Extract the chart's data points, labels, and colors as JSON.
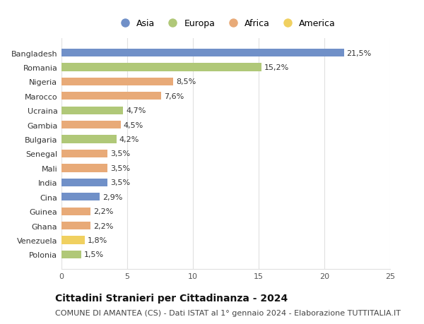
{
  "countries": [
    "Bangladesh",
    "Romania",
    "Nigeria",
    "Marocco",
    "Ucraina",
    "Gambia",
    "Bulgaria",
    "Senegal",
    "Mali",
    "India",
    "Cina",
    "Guinea",
    "Ghana",
    "Venezuela",
    "Polonia"
  ],
  "values": [
    21.5,
    15.2,
    8.5,
    7.6,
    4.7,
    4.5,
    4.2,
    3.5,
    3.5,
    3.5,
    2.9,
    2.2,
    2.2,
    1.8,
    1.5
  ],
  "labels": [
    "21,5%",
    "15,2%",
    "8,5%",
    "7,6%",
    "4,7%",
    "4,5%",
    "4,2%",
    "3,5%",
    "3,5%",
    "3,5%",
    "2,9%",
    "2,2%",
    "2,2%",
    "1,8%",
    "1,5%"
  ],
  "continents": [
    "Asia",
    "Europa",
    "Africa",
    "Africa",
    "Europa",
    "Africa",
    "Europa",
    "Africa",
    "Africa",
    "Asia",
    "Asia",
    "Africa",
    "Africa",
    "America",
    "Europa"
  ],
  "colors": {
    "Asia": "#7090c8",
    "Europa": "#b0c878",
    "Africa": "#e8aa78",
    "America": "#f0d060"
  },
  "xlim": [
    0,
    25
  ],
  "xticks": [
    0,
    5,
    10,
    15,
    20,
    25
  ],
  "title": "Cittadini Stranieri per Cittadinanza - 2024",
  "subtitle": "COMUNE DI AMANTEA (CS) - Dati ISTAT al 1° gennaio 2024 - Elaborazione TUTTITALIA.IT",
  "background_color": "#ffffff",
  "plot_background": "#ffffff",
  "grid_color": "#e0e0e0",
  "bar_height": 0.55,
  "title_fontsize": 10,
  "subtitle_fontsize": 8,
  "label_fontsize": 8,
  "tick_fontsize": 8,
  "legend_fontsize": 9
}
